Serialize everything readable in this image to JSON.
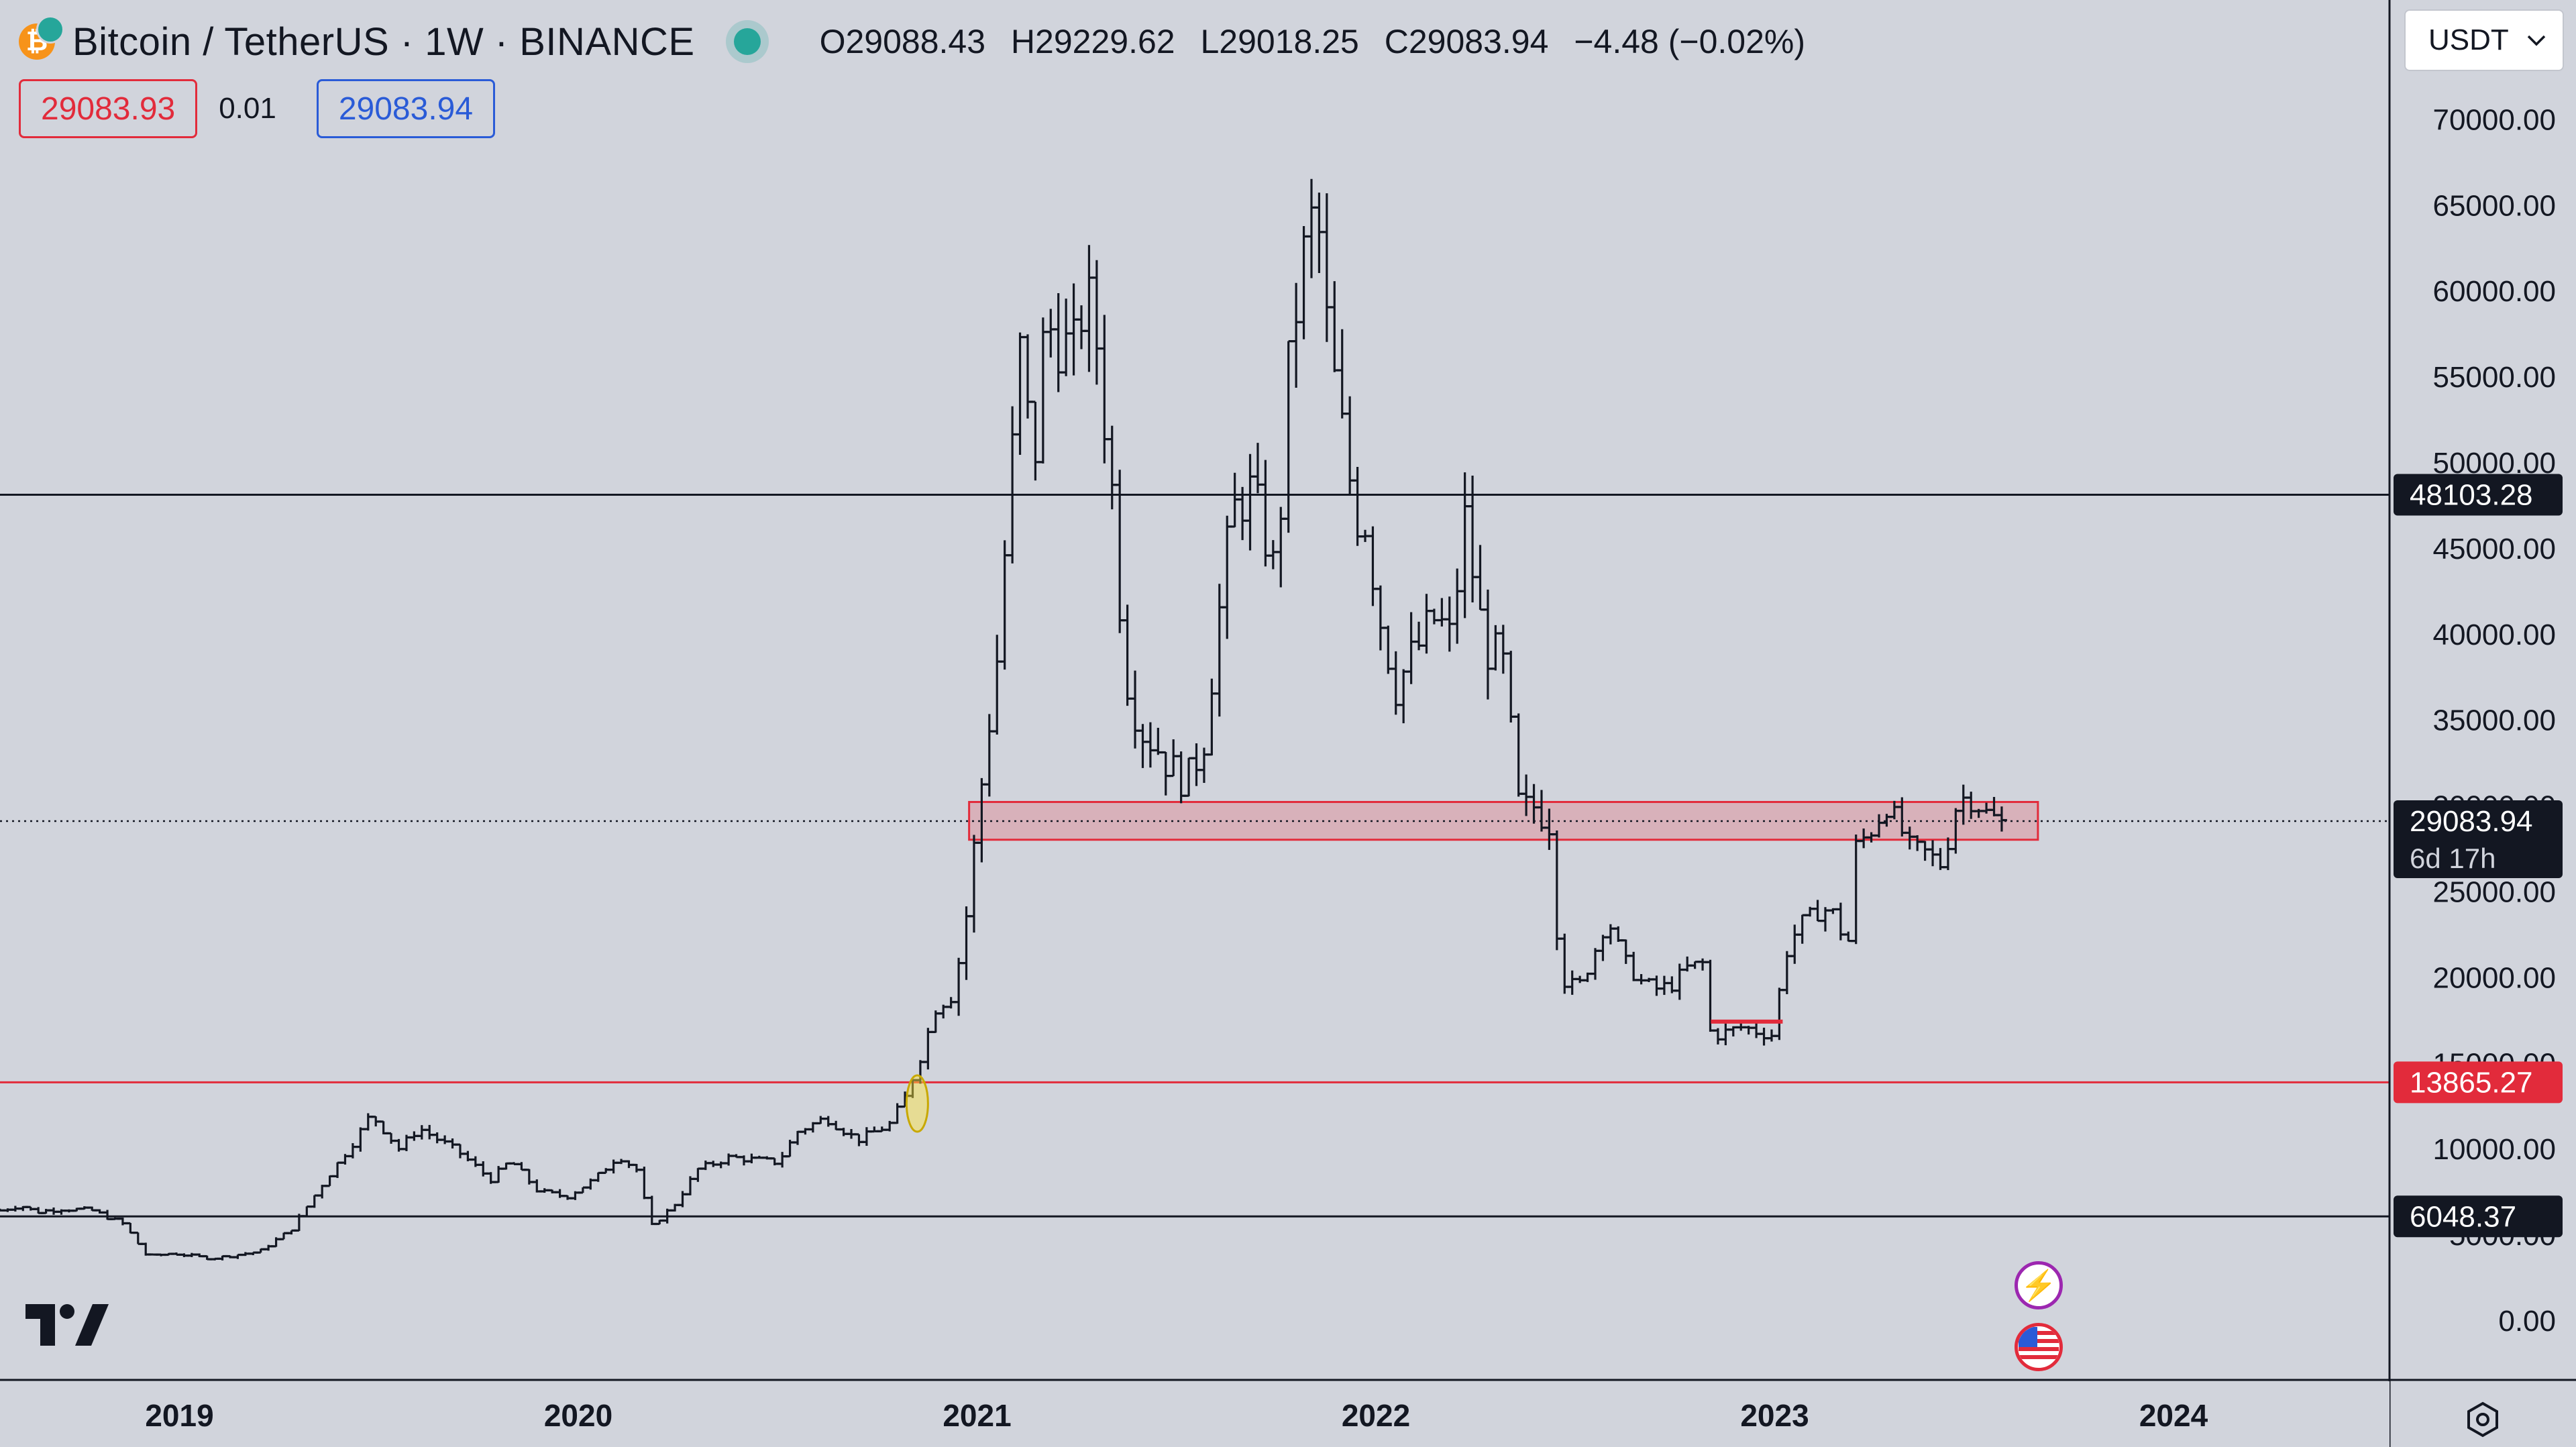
{
  "header": {
    "symbol": "Bitcoin / TetherUS · 1W · BINANCE",
    "open": "O29088.43",
    "high": "H29229.62",
    "low": "L29018.25",
    "close": "C29083.94",
    "change": "−4.48 (−0.02%)",
    "coin_icon": "bitcoin-icon",
    "coin_glyph": "₿",
    "up_color": "#26a69a"
  },
  "trade": {
    "sell_price": "29083.93",
    "spread": "0.01",
    "buy_price": "29083.94",
    "sell_color": "#e22b3b",
    "buy_color": "#2a5bd7"
  },
  "currency": {
    "selected": "USDT"
  },
  "chart_data": {
    "type": "bar",
    "subtype": "ohlc",
    "title": "Bitcoin / TetherUS · 1W · BINANCE",
    "ylim": [
      -2000,
      75000
    ],
    "yticks": [
      0,
      5000,
      10000,
      15000,
      20000,
      25000,
      30000,
      35000,
      40000,
      45000,
      50000,
      55000,
      60000,
      65000,
      70000
    ],
    "ytick_labels": [
      "0.00",
      "5000.00",
      "10000.00",
      "15000.00",
      "20000.00",
      "25000.00",
      "30000.00",
      "35000.00",
      "40000.00",
      "45000.00",
      "50000.00",
      "55000.00",
      "60000.00",
      "65000.00",
      "70000.00"
    ],
    "x_labels": [
      "2019",
      "2020",
      "2021",
      "2022",
      "2023",
      "2024"
    ],
    "x_label_years": [
      2019,
      2020,
      2021,
      2022,
      2023,
      2024
    ],
    "x_range": [
      2018.55,
      2024.5
    ],
    "anchors": [
      [
        2018.55,
        6400
      ],
      [
        2018.6,
        6700
      ],
      [
        2018.64,
        6300
      ],
      [
        2018.7,
        6500
      ],
      [
        2018.78,
        6400
      ],
      [
        2018.86,
        5600
      ],
      [
        2018.92,
        3700
      ],
      [
        2018.98,
        3900
      ],
      [
        2019.08,
        3600
      ],
      [
        2019.2,
        4000
      ],
      [
        2019.28,
        5300
      ],
      [
        2019.36,
        8000
      ],
      [
        2019.44,
        10500
      ],
      [
        2019.48,
        12000
      ],
      [
        2019.55,
        10000
      ],
      [
        2019.6,
        11200
      ],
      [
        2019.7,
        9800
      ],
      [
        2019.78,
        8200
      ],
      [
        2019.83,
        9300
      ],
      [
        2019.9,
        7500
      ],
      [
        2019.97,
        7200
      ],
      [
        2020.04,
        8200
      ],
      [
        2020.1,
        9600
      ],
      [
        2020.15,
        8700
      ],
      [
        2020.18,
        5400
      ],
      [
        2020.24,
        6700
      ],
      [
        2020.3,
        8800
      ],
      [
        2020.38,
        9500
      ],
      [
        2020.5,
        9200
      ],
      [
        2020.55,
        11000
      ],
      [
        2020.62,
        11800
      ],
      [
        2020.7,
        10500
      ],
      [
        2020.78,
        11400
      ],
      [
        2020.82,
        13000
      ],
      [
        2020.86,
        15500
      ],
      [
        2020.9,
        18500
      ],
      [
        2020.94,
        19200
      ],
      [
        2020.97,
        23000
      ],
      [
        2021.0,
        29000
      ],
      [
        2021.02,
        33000
      ],
      [
        2021.05,
        38500
      ],
      [
        2021.08,
        48000
      ],
      [
        2021.11,
        57000
      ],
      [
        2021.14,
        49000
      ],
      [
        2021.17,
        58000
      ],
      [
        2021.2,
        57500
      ],
      [
        2021.24,
        56000
      ],
      [
        2021.27,
        60000
      ],
      [
        2021.3,
        57000
      ],
      [
        2021.34,
        48000
      ],
      [
        2021.37,
        38000
      ],
      [
        2021.41,
        34500
      ],
      [
        2021.45,
        33500
      ],
      [
        2021.49,
        32000
      ],
      [
        2021.53,
        31500
      ],
      [
        2021.57,
        34000
      ],
      [
        2021.6,
        40000
      ],
      [
        2021.64,
        47000
      ],
      [
        2021.68,
        48500
      ],
      [
        2021.72,
        46000
      ],
      [
        2021.75,
        43000
      ],
      [
        2021.78,
        55000
      ],
      [
        2021.81,
        61000
      ],
      [
        2021.84,
        64000
      ],
      [
        2021.86,
        63000
      ],
      [
        2021.88,
        57000
      ],
      [
        2021.92,
        51000
      ],
      [
        2021.95,
        47000
      ],
      [
        2021.98,
        46500
      ],
      [
        2022.0,
        42000
      ],
      [
        2022.05,
        37000
      ],
      [
        2022.1,
        39000
      ],
      [
        2022.15,
        41000
      ],
      [
        2022.19,
        39500
      ],
      [
        2022.22,
        47000
      ],
      [
        2022.27,
        39500
      ],
      [
        2022.32,
        38000
      ],
      [
        2022.36,
        29500
      ],
      [
        2022.4,
        30000
      ],
      [
        2022.44,
        29000
      ],
      [
        2022.46,
        20500
      ],
      [
        2022.5,
        19000
      ],
      [
        2022.54,
        21000
      ],
      [
        2022.58,
        23500
      ],
      [
        2022.62,
        21000
      ],
      [
        2022.66,
        19800
      ],
      [
        2022.7,
        19300
      ],
      [
        2022.74,
        19500
      ],
      [
        2022.78,
        20500
      ],
      [
        2022.82,
        20800
      ],
      [
        2022.84,
        16500
      ],
      [
        2022.88,
        16800
      ],
      [
        2022.92,
        17100
      ],
      [
        2022.96,
        16800
      ],
      [
        2023.0,
        16600
      ],
      [
        2023.02,
        21000
      ],
      [
        2023.06,
        23000
      ],
      [
        2023.12,
        24000
      ],
      [
        2023.16,
        23500
      ],
      [
        2023.18,
        20500
      ],
      [
        2023.2,
        27500
      ],
      [
        2023.24,
        28500
      ],
      [
        2023.28,
        30000
      ],
      [
        2023.3,
        29300
      ],
      [
        2023.34,
        27500
      ],
      [
        2023.38,
        27200
      ],
      [
        2023.42,
        26500
      ],
      [
        2023.46,
        30500
      ],
      [
        2023.5,
        30300
      ],
      [
        2023.54,
        29300
      ],
      [
        2023.58,
        29084
      ]
    ],
    "levels": [
      {
        "name": "resistance",
        "value": 48103.28,
        "label": "48103.28",
        "color": "#131722"
      },
      {
        "name": "current-price",
        "value": 29083.94,
        "label": "29083.94",
        "sub_label": "6d 17h",
        "color": "#131722",
        "style": "dotted"
      },
      {
        "name": "breakout",
        "value": 13865.27,
        "label": "13865.27",
        "color": "#e22b3b"
      },
      {
        "name": "support",
        "value": 6048.37,
        "label": "6048.37",
        "color": "#131722"
      }
    ],
    "zone": {
      "from": 2020.98,
      "to": 2023.66,
      "low": 28000,
      "high": 30200,
      "fill": "rgba(242,54,69,0.22)",
      "stroke": "#e22b3b"
    },
    "red_segment": {
      "from": 2022.84,
      "to": 2023.02,
      "value": 17400,
      "color": "#e22b3b"
    },
    "ellipse_marker": {
      "at": 2020.85,
      "value": 13800,
      "fill": "rgba(255,230,60,0.45)",
      "stroke": "#c8a800"
    }
  }
}
